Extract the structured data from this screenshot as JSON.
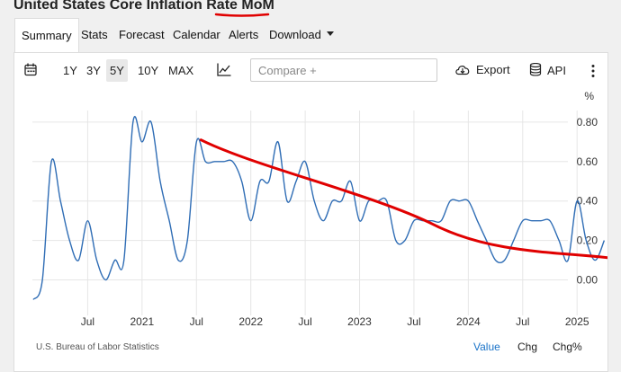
{
  "page_title": "United States Core Inflation Rate MoM",
  "tabs": [
    {
      "label": "Summary",
      "active": true
    },
    {
      "label": "Stats"
    },
    {
      "label": "Forecast"
    },
    {
      "label": "Calendar"
    },
    {
      "label": "Alerts"
    },
    {
      "label": "Download",
      "dropdown": true
    }
  ],
  "toolbar": {
    "calendar_icon": "calendar-icon",
    "ranges": [
      "1Y",
      "3Y",
      "5Y",
      "10Y",
      "MAX"
    ],
    "selected_range": "5Y",
    "chart_type_icon": "line-chart-icon",
    "compare_placeholder": "Compare +",
    "export_label": "Export",
    "export_icon": "cloud-download-icon",
    "api_label": "API",
    "api_icon": "database-icon",
    "more_icon": "more-vertical-icon"
  },
  "footer": {
    "source": "U.S. Bureau of Labor Statistics",
    "modes": [
      "Value",
      "Chg",
      "Chg%"
    ],
    "active_mode": "Value"
  },
  "colors": {
    "series": "#2f6db5",
    "annotation": "#e00000",
    "active_link": "#1a73c8"
  },
  "chart_data": {
    "type": "line",
    "ylabel": "%",
    "yticks": [
      "0.80",
      "0.60",
      "0.40",
      "0.20",
      "0.00"
    ],
    "ylim": [
      -0.12,
      0.86
    ],
    "xticks": [
      "Jul",
      "2021",
      "Jul",
      "2022",
      "Jul",
      "2023",
      "Jul",
      "2024",
      "Jul",
      "2025"
    ],
    "xtick_months": [
      6,
      12,
      18,
      24,
      30,
      36,
      42,
      48,
      54,
      60
    ],
    "series": [
      {
        "months": [
          0,
          1,
          2,
          3,
          4,
          5,
          6,
          7,
          8,
          9,
          10,
          11,
          12,
          13,
          14,
          15,
          16,
          17,
          18,
          19,
          20,
          21,
          22,
          23,
          24,
          25,
          26,
          27,
          28,
          29,
          30,
          31,
          32,
          33,
          34,
          35,
          36,
          37,
          38,
          39,
          40,
          41,
          42,
          43,
          44,
          45,
          46,
          47,
          48,
          49,
          50,
          51,
          52,
          53,
          54,
          55,
          56,
          57,
          58,
          59,
          60,
          61,
          62,
          63
        ],
        "values": [
          -0.1,
          0.0,
          0.6,
          0.4,
          0.2,
          0.1,
          0.3,
          0.1,
          0.0,
          0.1,
          0.1,
          0.8,
          0.7,
          0.8,
          0.5,
          0.3,
          0.1,
          0.2,
          0.7,
          0.6,
          0.6,
          0.6,
          0.6,
          0.5,
          0.3,
          0.5,
          0.5,
          0.7,
          0.4,
          0.5,
          0.6,
          0.4,
          0.3,
          0.4,
          0.4,
          0.5,
          0.3,
          0.4,
          0.4,
          0.4,
          0.2,
          0.2,
          0.3,
          0.3,
          0.3,
          0.3,
          0.4,
          0.4,
          0.4,
          0.3,
          0.2,
          0.1,
          0.1,
          0.2,
          0.3,
          0.3,
          0.3,
          0.3,
          0.2,
          0.1,
          0.4,
          0.2,
          0.1,
          0.2
        ]
      }
    ],
    "annotation": {
      "type": "hand-drawn trend arrow",
      "start": {
        "month": 18.5,
        "value": 0.71
      },
      "end": {
        "month": 65.5,
        "value": 0.1
      }
    }
  }
}
